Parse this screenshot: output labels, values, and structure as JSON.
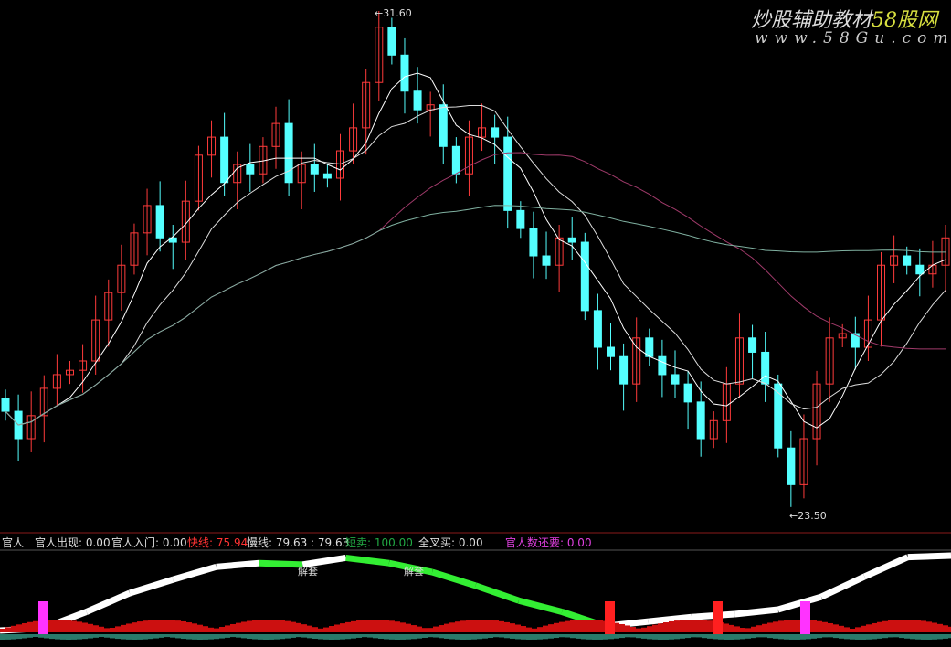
{
  "watermark": {
    "brand": "炒股辅助教材",
    "site": "58股网",
    "url": "www.58Gu.com"
  },
  "indicator_labels": {
    "name": "官人",
    "appear": "官人出现: 0.00",
    "enter": "官人入门: 0.00",
    "fast": "快线: 75.94",
    "slow": "慢线: 79.63 : 79.63",
    "short_sell": "短卖: 100.00",
    "golden_buy": "全叉买: 0.00",
    "remaining": "官人数还要: 0.00"
  },
  "colors": {
    "up": "#ff3b3b",
    "down": "#54ffff",
    "fast": "#ff3333",
    "short_sell": "#22cc44",
    "remaining": "#e040e0",
    "ma_long": "#7fb0a0",
    "ma_mid": "#a03a6a"
  },
  "chart_data": {
    "type": "candlestick",
    "high_label": "31.60",
    "low_label": "23.50",
    "ylim": [
      23.5,
      31.6
    ],
    "close": [
      25.16,
      24.72,
      25.09,
      25.53,
      25.75,
      25.82,
      25.97,
      26.63,
      27.07,
      27.51,
      28.03,
      28.47,
      27.95,
      27.88,
      28.54,
      29.28,
      29.57,
      28.84,
      29.13,
      28.98,
      29.42,
      29.79,
      28.84,
      29.13,
      28.98,
      28.91,
      29.35,
      29.72,
      30.45,
      31.34,
      30.89,
      30.31,
      30.01,
      30.09,
      29.42,
      28.98,
      29.57,
      29.72,
      29.57,
      28.39,
      28.1,
      27.66,
      27.51,
      27.95,
      27.88,
      26.78,
      26.19,
      26.04,
      25.6,
      26.34,
      26.04,
      25.75,
      25.6,
      25.31,
      24.72,
      25.01,
      25.6,
      26.34,
      26.11,
      25.6,
      24.57,
      23.98,
      24.72,
      25.6,
      26.34,
      26.41,
      26.19,
      26.63,
      27.51,
      27.66,
      27.51,
      27.37,
      27.51,
      27.95
    ],
    "indicator": {
      "line": [
        0,
        3,
        25,
        50,
        68,
        85,
        90,
        88,
        97,
        90,
        78,
        60,
        40,
        25,
        6,
        12,
        18,
        22,
        28,
        45,
        72,
        98,
        100
      ],
      "signal_labels": [
        "解套",
        "解套"
      ]
    }
  }
}
